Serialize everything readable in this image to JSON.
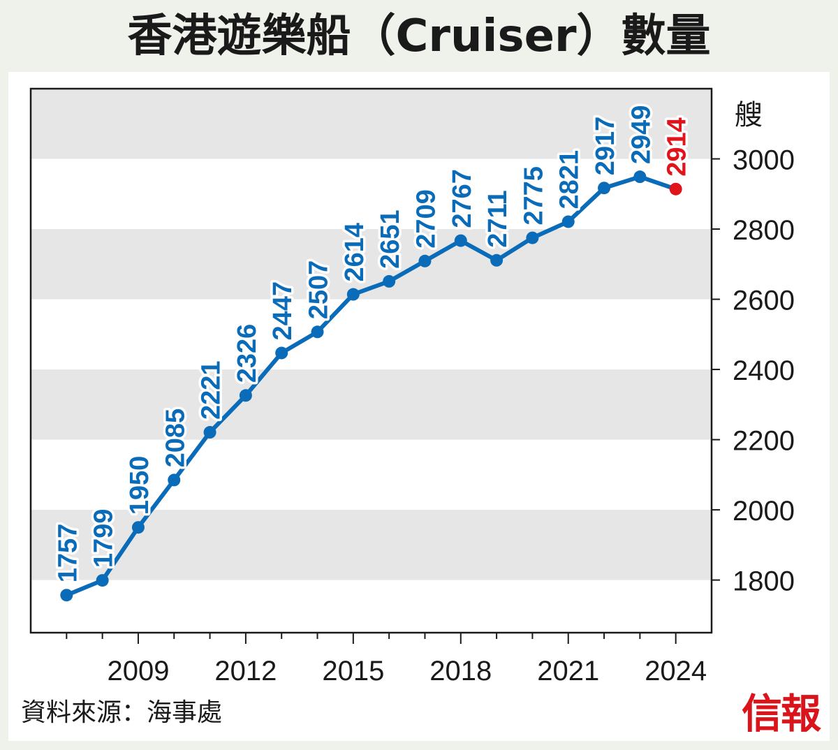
{
  "title": "香港遊樂船（Cruiser）數量",
  "source": "資料來源：海事處",
  "logo_text": "信報",
  "chart_data": {
    "type": "line",
    "title": "香港遊樂船（Cruiser）數量",
    "ylabel": "艘",
    "x": [
      2007,
      2008,
      2009,
      2010,
      2011,
      2012,
      2013,
      2014,
      2015,
      2016,
      2017,
      2018,
      2019,
      2020,
      2021,
      2022,
      2023,
      2024
    ],
    "values": [
      1757,
      1799,
      1950,
      2085,
      2221,
      2326,
      2447,
      2507,
      2614,
      2651,
      2709,
      2767,
      2711,
      2775,
      2821,
      2917,
      2949,
      2914
    ],
    "data_labels": [
      "1757",
      "1799",
      "1950",
      "2085",
      "2221",
      "2326",
      "2447",
      "2507",
      "2614",
      "2651",
      "2709",
      "2767",
      "2711",
      "2775",
      "2821",
      "2917",
      "2949",
      "2914"
    ],
    "xticks": [
      "2009",
      "2012",
      "2015",
      "2018",
      "2021",
      "2024"
    ],
    "yticks": [
      "1800",
      "2000",
      "2200",
      "2400",
      "2600",
      "2800",
      "3000"
    ],
    "ylim": [
      1650,
      3200
    ],
    "xlim": [
      2006,
      2025
    ],
    "y_axis_side": "right",
    "grid": "alternating horizontal bands",
    "colors": {
      "line": "#0a6cb8",
      "highlight": "#e1131b",
      "band": "#e6e6e6",
      "text": "#1a1a1a"
    },
    "highlight_last_point": true
  }
}
